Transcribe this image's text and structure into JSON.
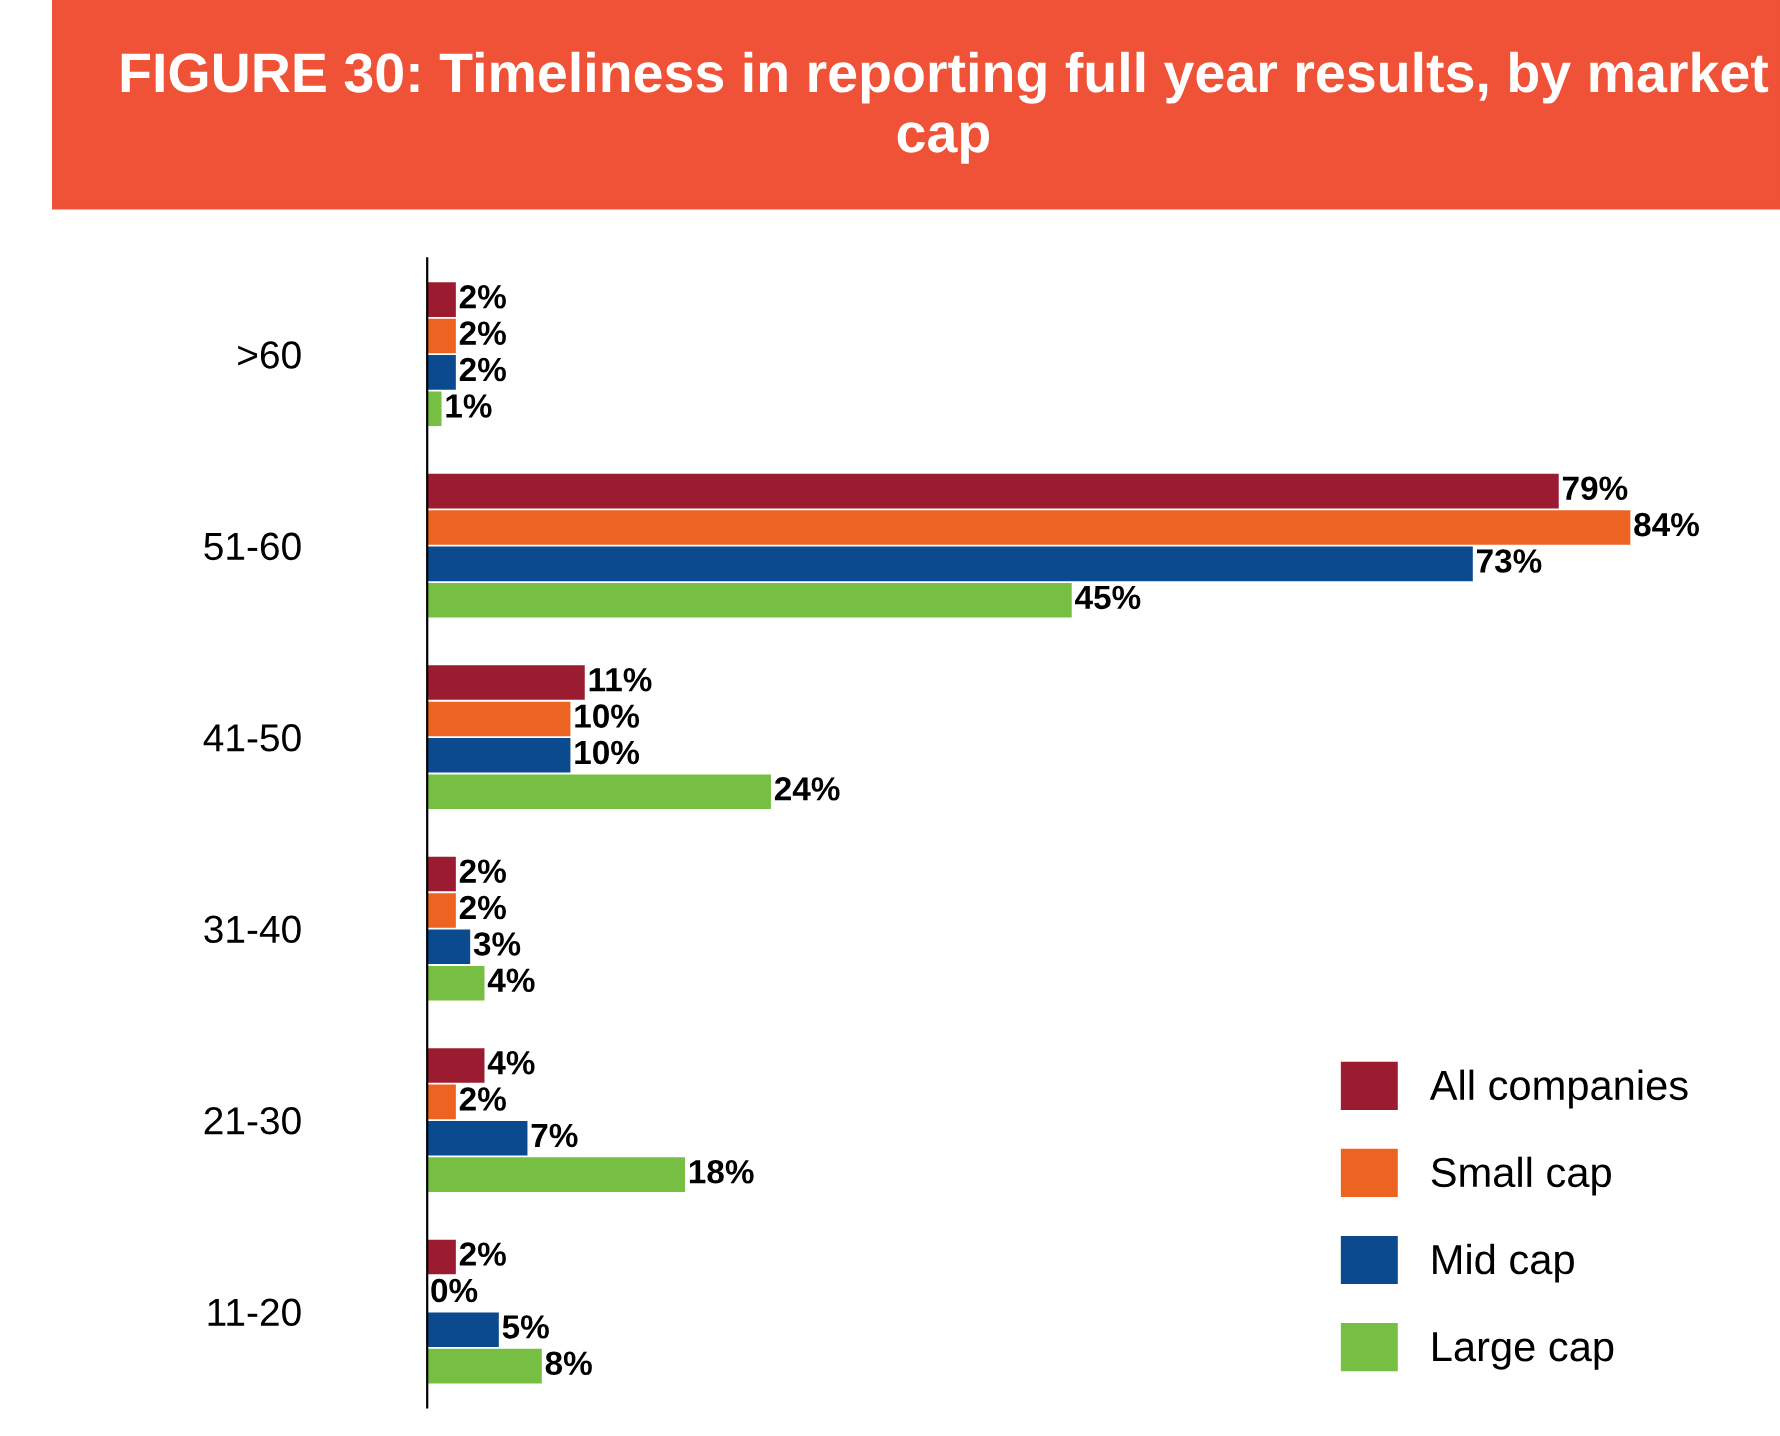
{
  "chart_data": {
    "type": "bar",
    "orientation": "horizontal",
    "title": "FIGURE 30: Timeliness in reporting full year results, by market cap",
    "categories": [
      ">60",
      "51-60",
      "41-50",
      "31-40",
      "21-30",
      "11-20"
    ],
    "series": [
      {
        "name": "All companies",
        "color": "#9b1c31",
        "values": [
          2,
          79,
          11,
          2,
          4,
          2
        ],
        "value_labels": [
          "2%",
          "79%",
          "11%",
          "2%",
          "4%",
          "2%"
        ]
      },
      {
        "name": "Small cap",
        "color": "#ec6322",
        "values": [
          2,
          84,
          10,
          2,
          2,
          0
        ],
        "value_labels": [
          "2%",
          "84%",
          "10%",
          "2%",
          "2%",
          "0%"
        ]
      },
      {
        "name": "Mid cap",
        "color": "#0b4a8f",
        "values": [
          2,
          73,
          10,
          3,
          7,
          5
        ],
        "value_labels": [
          "2%",
          "73%",
          "10%",
          "3%",
          "7%",
          "5%"
        ]
      },
      {
        "name": "Large cap",
        "color": "#77bf43",
        "values": [
          1,
          45,
          24,
          4,
          18,
          8
        ],
        "value_labels": [
          "1%",
          "45%",
          "24%",
          "4%",
          "18%",
          "8%"
        ]
      }
    ],
    "legend": "bottom right",
    "grid": false
  }
}
